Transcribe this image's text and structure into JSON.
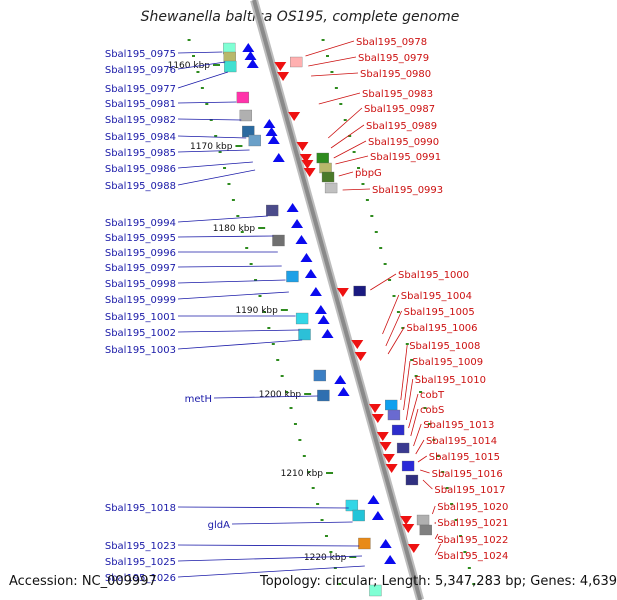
{
  "title": "Shewanella baltica OS195, complete genome",
  "footer": {
    "accession": "Accession: NC_009997",
    "summary": "Topology: circular; Length: 5,347,283 bp; Genes: 4,639"
  },
  "colors": {
    "left_label": "#1a1aa8",
    "right_label": "#cc1111",
    "backbone": "#8a8a8a",
    "ruler_dash": "#2e8b1e",
    "forward_arrow": "#0a0aee",
    "reverse_arrow": "#ee1111"
  },
  "scale_labels": [
    "1160 kbp",
    "1170 kbp",
    "1180 kbp",
    "1190 kbp",
    "1200 kbp",
    "1210 kbp",
    "1220 kbp"
  ],
  "left_genes": [
    "Sbal195_0975",
    "Sbal195_0976",
    "Sbal195_0977",
    "Sbal195_0981",
    "Sbal195_0982",
    "Sbal195_0984",
    "Sbal195_0985",
    "Sbal195_0986",
    "Sbal195_0988",
    "Sbal195_0994",
    "Sbal195_0995",
    "Sbal195_0996",
    "Sbal195_0997",
    "Sbal195_0998",
    "Sbal195_0999",
    "Sbal195_1001",
    "Sbal195_1002",
    "Sbal195_1003",
    "metH",
    "Sbal195_1018",
    "gldA",
    "Sbal195_1023",
    "Sbal195_1025",
    "Sbal195_1026"
  ],
  "right_genes": [
    "Sbal195_0978",
    "Sbal195_0979",
    "Sbal195_0980",
    "Sbal195_0983",
    "Sbal195_0987",
    "Sbal195_0989",
    "Sbal195_0990",
    "Sbal195_0991",
    "pbpG",
    "Sbal195_0993",
    "Sbal195_1000",
    "Sbal195_1004",
    "Sbal195_1005",
    "Sbal195_1006",
    "Sbal195_1008",
    "Sbal195_1009",
    "Sbal195_1010",
    "cobT",
    "cobS",
    "Sbal195_1013",
    "Sbal195_1014",
    "Sbal195_1015",
    "Sbal195_1016",
    "Sbal195_1017",
    "Sbal195_1020",
    "Sbal195_1021",
    "Sbal195_1022",
    "Sbal195_1024"
  ]
}
